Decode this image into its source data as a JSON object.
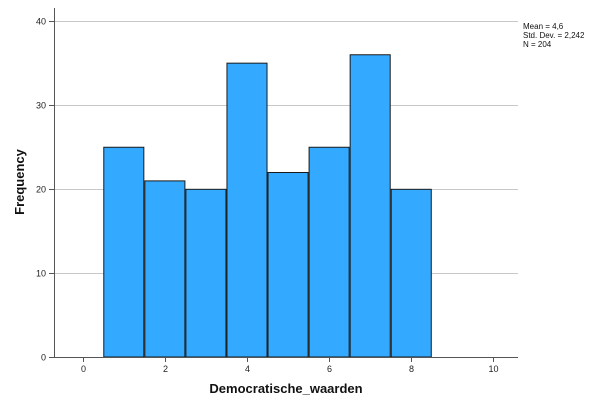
{
  "chart_data": {
    "type": "bar",
    "variant": "histogram",
    "xlabel": "Democratische_waarden",
    "ylabel": "Frequency",
    "bins": [
      {
        "from": 0.5,
        "to": 1.5,
        "count": 25
      },
      {
        "from": 1.5,
        "to": 2.5,
        "count": 21
      },
      {
        "from": 2.5,
        "to": 3.5,
        "count": 20
      },
      {
        "from": 3.5,
        "to": 4.5,
        "count": 35
      },
      {
        "from": 4.5,
        "to": 5.5,
        "count": 22
      },
      {
        "from": 5.5,
        "to": 6.5,
        "count": 25
      },
      {
        "from": 6.5,
        "to": 7.5,
        "count": 36
      },
      {
        "from": 7.5,
        "to": 8.5,
        "count": 20
      }
    ],
    "xlim": [
      -0.7,
      10.6
    ],
    "ylim": [
      0,
      41.5
    ],
    "x_ticks": [
      0,
      2,
      4,
      6,
      8,
      10
    ],
    "y_ticks": [
      0,
      10,
      20,
      30,
      40
    ],
    "grid": "horizontal",
    "bar_color": "#33a9ff",
    "bar_edge_color": "#1a1a1a"
  },
  "stats": {
    "mean": "Mean = 4,6",
    "std_dev": "Std. Dev. = 2,242",
    "n": "N = 204"
  }
}
